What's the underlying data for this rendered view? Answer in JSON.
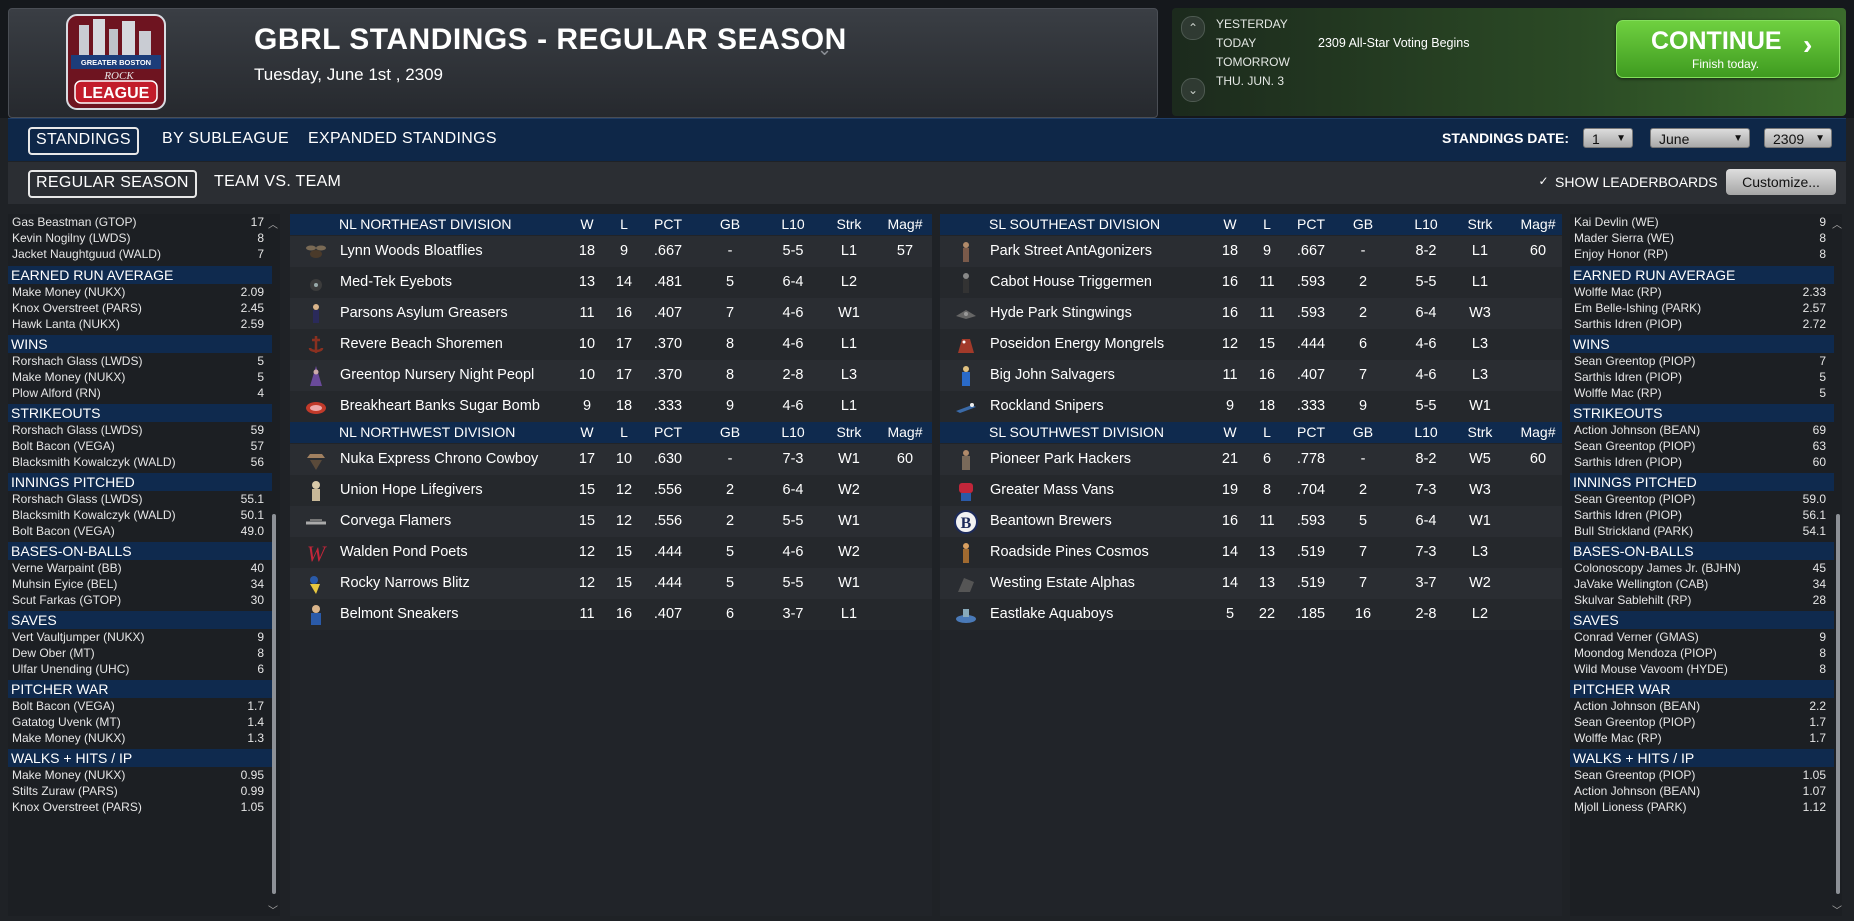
{
  "header": {
    "title": "GBRL STANDINGS - REGULAR SEASON",
    "date": "Tuesday, June 1st , 2309",
    "logo": {
      "top": "GREATER BOSTON",
      "script": "ROCK",
      "bottom": "LEAGUE"
    }
  },
  "schedule": {
    "days": [
      "YESTERDAY",
      "TODAY",
      "TOMORROW",
      "THU. JUN. 3"
    ],
    "today_event": "2309 All-Star Voting Begins",
    "continue_label": "CONTINUE",
    "continue_sub": "Finish today."
  },
  "tabs_primary": [
    "STANDINGS",
    "BY SUBLEAGUE",
    "EXPANDED STANDINGS"
  ],
  "tabs_secondary": [
    "REGULAR SEASON",
    "TEAM VS. TEAM"
  ],
  "controls": {
    "standings_date_label": "STANDINGS DATE:",
    "day": "1",
    "month": "June",
    "year": "2309",
    "show_leaderboards": "SHOW LEADERBOARDS",
    "customize": "Customize..."
  },
  "left_leaders": {
    "top_rows": [
      {
        "n": "Gas Beastman (GTOP)",
        "v": "17"
      },
      {
        "n": "Kevin Nogilny (LWDS)",
        "v": "8"
      },
      {
        "n": "Jacket Naughtguud (WALD)",
        "v": "7"
      }
    ],
    "categories": [
      {
        "title": "EARNED RUN AVERAGE",
        "rows": [
          {
            "n": "Make Money (NUKX)",
            "v": "2.09"
          },
          {
            "n": "Knox Overstreet (PARS)",
            "v": "2.45"
          },
          {
            "n": "Hawk Lanta (NUKX)",
            "v": "2.59"
          }
        ]
      },
      {
        "title": "WINS",
        "rows": [
          {
            "n": "Rorshach Glass (LWDS)",
            "v": "5"
          },
          {
            "n": "Make Money (NUKX)",
            "v": "5"
          },
          {
            "n": "Plow Alford (RN)",
            "v": "4"
          }
        ]
      },
      {
        "title": "STRIKEOUTS",
        "rows": [
          {
            "n": "Rorshach Glass (LWDS)",
            "v": "59"
          },
          {
            "n": "Bolt Bacon (VEGA)",
            "v": "57"
          },
          {
            "n": "Blacksmith Kowalczyk (WALD)",
            "v": "56"
          }
        ]
      },
      {
        "title": "INNINGS PITCHED",
        "rows": [
          {
            "n": "Rorshach Glass (LWDS)",
            "v": "55.1"
          },
          {
            "n": "Blacksmith Kowalczyk (WALD)",
            "v": "50.1"
          },
          {
            "n": "Bolt Bacon (VEGA)",
            "v": "49.0"
          }
        ]
      },
      {
        "title": "BASES-ON-BALLS",
        "rows": [
          {
            "n": "Verne Warpaint (BB)",
            "v": "40"
          },
          {
            "n": "Muhsin Eyice (BEL)",
            "v": "34"
          },
          {
            "n": "Scut Farkas (GTOP)",
            "v": "30"
          }
        ]
      },
      {
        "title": "SAVES",
        "rows": [
          {
            "n": "Vert Vaultjumper (NUKX)",
            "v": "9"
          },
          {
            "n": "Dew Ober (MT)",
            "v": "8"
          },
          {
            "n": "Ulfar Unending (UHC)",
            "v": "6"
          }
        ]
      },
      {
        "title": "PITCHER WAR",
        "rows": [
          {
            "n": "Bolt Bacon (VEGA)",
            "v": "1.7"
          },
          {
            "n": "Gatatog Uvenk (MT)",
            "v": "1.4"
          },
          {
            "n": "Make Money (NUKX)",
            "v": "1.3"
          }
        ]
      },
      {
        "title": "WALKS + HITS / IP",
        "rows": [
          {
            "n": "Make Money (NUKX)",
            "v": "0.95"
          },
          {
            "n": "Stilts Zuraw (PARS)",
            "v": "0.99"
          },
          {
            "n": "Knox Overstreet (PARS)",
            "v": "1.05"
          }
        ]
      }
    ]
  },
  "right_leaders": {
    "top_rows": [
      {
        "n": "Kai Devlin (WE)",
        "v": "9"
      },
      {
        "n": "Mader Sierra (WE)",
        "v": "8"
      },
      {
        "n": "Enjoy Honor (RP)",
        "v": "8"
      }
    ],
    "categories": [
      {
        "title": "EARNED RUN AVERAGE",
        "rows": [
          {
            "n": "Wolffe Mac (RP)",
            "v": "2.33"
          },
          {
            "n": "Em Belle-Ishing (PARK)",
            "v": "2.57"
          },
          {
            "n": "Sarthis Idren (PIOP)",
            "v": "2.72"
          }
        ]
      },
      {
        "title": "WINS",
        "rows": [
          {
            "n": "Sean Greentop (PIOP)",
            "v": "7"
          },
          {
            "n": "Sarthis Idren (PIOP)",
            "v": "5"
          },
          {
            "n": "Wolffe Mac (RP)",
            "v": "5"
          }
        ]
      },
      {
        "title": "STRIKEOUTS",
        "rows": [
          {
            "n": "Action Johnson (BEAN)",
            "v": "69"
          },
          {
            "n": "Sean Greentop (PIOP)",
            "v": "63"
          },
          {
            "n": "Sarthis Idren (PIOP)",
            "v": "60"
          }
        ]
      },
      {
        "title": "INNINGS PITCHED",
        "rows": [
          {
            "n": "Sean Greentop (PIOP)",
            "v": "59.0"
          },
          {
            "n": "Sarthis Idren (PIOP)",
            "v": "56.1"
          },
          {
            "n": "Bull Strickland (PARK)",
            "v": "54.1"
          }
        ]
      },
      {
        "title": "BASES-ON-BALLS",
        "rows": [
          {
            "n": "Colonoscopy James Jr. (BJHN)",
            "v": "45"
          },
          {
            "n": "JaVake Wellington (CAB)",
            "v": "34"
          },
          {
            "n": "Skulvar Sablehilt (RP)",
            "v": "28"
          }
        ]
      },
      {
        "title": "SAVES",
        "rows": [
          {
            "n": "Conrad Verner (GMAS)",
            "v": "9"
          },
          {
            "n": "Moondog Mendoza (PIOP)",
            "v": "8"
          },
          {
            "n": "Wild Mouse Vavoom (HYDE)",
            "v": "8"
          }
        ]
      },
      {
        "title": "PITCHER WAR",
        "rows": [
          {
            "n": "Action Johnson (BEAN)",
            "v": "2.2"
          },
          {
            "n": "Sean Greentop (PIOP)",
            "v": "1.7"
          },
          {
            "n": "Wolffe Mac (RP)",
            "v": "1.7"
          }
        ]
      },
      {
        "title": "WALKS + HITS / IP",
        "rows": [
          {
            "n": "Sean Greentop (PIOP)",
            "v": "1.05"
          },
          {
            "n": "Action Johnson (BEAN)",
            "v": "1.07"
          },
          {
            "n": "Mjoll Lioness (PARK)",
            "v": "1.12"
          }
        ]
      }
    ]
  },
  "columns": [
    "W",
    "L",
    "PCT",
    "GB",
    "L10",
    "Strk",
    "Mag#"
  ],
  "nl_divisions": [
    {
      "name": "NL NORTHEAST DIVISION",
      "teams": [
        {
          "name": "Lynn Woods Bloatflies",
          "w": "18",
          "l": "9",
          "pct": ".667",
          "gb": "-",
          "l10": "5-5",
          "strk": "L1",
          "mag": "57",
          "icon": "fly-icon"
        },
        {
          "name": "Med-Tek Eyebots",
          "w": "13",
          "l": "14",
          "pct": ".481",
          "gb": "5",
          "l10": "6-4",
          "strk": "L2",
          "mag": "",
          "icon": "eyebot-icon"
        },
        {
          "name": "Parsons Asylum Greasers",
          "w": "11",
          "l": "16",
          "pct": ".407",
          "gb": "7",
          "l10": "4-6",
          "strk": "W1",
          "mag": "",
          "icon": "greaser-icon"
        },
        {
          "name": "Revere Beach Shoremen",
          "w": "10",
          "l": "17",
          "pct": ".370",
          "gb": "8",
          "l10": "4-6",
          "strk": "L1",
          "mag": "",
          "icon": "anchor-icon"
        },
        {
          "name": "Greentop Nursery Night Peopl",
          "w": "10",
          "l": "17",
          "pct": ".370",
          "gb": "8",
          "l10": "2-8",
          "strk": "L3",
          "mag": "",
          "icon": "hooded-figure-icon"
        },
        {
          "name": "Breakheart Banks Sugar Bomb",
          "w": "9",
          "l": "18",
          "pct": ".333",
          "gb": "9",
          "l10": "4-6",
          "strk": "L1",
          "mag": "",
          "icon": "sugar-bomb-icon"
        }
      ]
    },
    {
      "name": "NL NORTHWEST DIVISION",
      "teams": [
        {
          "name": "Nuka Express Chrono Cowboy",
          "w": "17",
          "l": "10",
          "pct": ".630",
          "gb": "-",
          "l10": "7-3",
          "strk": "W1",
          "mag": "60",
          "icon": "cowboy-icon"
        },
        {
          "name": "Union Hope Lifegivers",
          "w": "15",
          "l": "12",
          "pct": ".556",
          "gb": "2",
          "l10": "6-4",
          "strk": "W2",
          "mag": "",
          "icon": "lifegiver-icon"
        },
        {
          "name": "Corvega Flamers",
          "w": "15",
          "l": "12",
          "pct": ".556",
          "gb": "2",
          "l10": "5-5",
          "strk": "W1",
          "mag": "",
          "icon": "car-badge-icon"
        },
        {
          "name": "Walden Pond Poets",
          "w": "12",
          "l": "15",
          "pct": ".444",
          "gb": "5",
          "l10": "4-6",
          "strk": "W2",
          "mag": "",
          "icon": "letter-w-icon"
        },
        {
          "name": "Rocky Narrows Blitz",
          "w": "12",
          "l": "15",
          "pct": ".444",
          "gb": "5",
          "l10": "5-5",
          "strk": "W1",
          "mag": "",
          "icon": "blitz-icon"
        },
        {
          "name": "Belmont Sneakers",
          "w": "11",
          "l": "16",
          "pct": ".407",
          "gb": "6",
          "l10": "3-7",
          "strk": "L1",
          "mag": "",
          "icon": "sneaker-icon"
        }
      ]
    }
  ],
  "sl_divisions": [
    {
      "name": "SL SOUTHEAST DIVISION",
      "teams": [
        {
          "name": "Park Street AntAgonizers",
          "w": "18",
          "l": "9",
          "pct": ".667",
          "gb": "-",
          "l10": "8-2",
          "strk": "L1",
          "mag": "60",
          "icon": "ant-icon"
        },
        {
          "name": "Cabot House Triggermen",
          "w": "16",
          "l": "11",
          "pct": ".593",
          "gb": "2",
          "l10": "5-5",
          "strk": "L1",
          "mag": "",
          "icon": "gunman-icon"
        },
        {
          "name": "Hyde Park Stingwings",
          "w": "16",
          "l": "11",
          "pct": ".593",
          "gb": "2",
          "l10": "6-4",
          "strk": "W3",
          "mag": "",
          "icon": "stingwing-icon"
        },
        {
          "name": "Poseidon Energy Mongrels",
          "w": "12",
          "l": "15",
          "pct": ".444",
          "gb": "6",
          "l10": "4-6",
          "strk": "L3",
          "mag": "",
          "icon": "dog-icon"
        },
        {
          "name": "Big John Salvagers",
          "w": "11",
          "l": "16",
          "pct": ".407",
          "gb": "7",
          "l10": "4-6",
          "strk": "L3",
          "mag": "",
          "icon": "salvager-icon"
        },
        {
          "name": "Rockland Snipers",
          "w": "9",
          "l": "18",
          "pct": ".333",
          "gb": "9",
          "l10": "5-5",
          "strk": "W1",
          "mag": "",
          "icon": "sniper-icon"
        }
      ]
    },
    {
      "name": "SL SOUTHWEST DIVISION",
      "teams": [
        {
          "name": "Pioneer Park Hackers",
          "w": "21",
          "l": "6",
          "pct": ".778",
          "gb": "-",
          "l10": "8-2",
          "strk": "W5",
          "mag": "60",
          "icon": "hacker-icon"
        },
        {
          "name": "Greater Mass Vans",
          "w": "19",
          "l": "8",
          "pct": ".704",
          "gb": "2",
          "l10": "7-3",
          "strk": "W3",
          "mag": "",
          "icon": "van-icon"
        },
        {
          "name": "Beantown Brewers",
          "w": "16",
          "l": "11",
          "pct": ".593",
          "gb": "5",
          "l10": "6-4",
          "strk": "W1",
          "mag": "",
          "icon": "letter-b-icon"
        },
        {
          "name": "Roadside Pines Cosmos",
          "w": "14",
          "l": "13",
          "pct": ".519",
          "gb": "7",
          "l10": "7-3",
          "strk": "L3",
          "mag": "",
          "icon": "cosmos-icon"
        },
        {
          "name": "Westing Estate Alphas",
          "w": "14",
          "l": "13",
          "pct": ".519",
          "gb": "7",
          "l10": "3-7",
          "strk": "W2",
          "mag": "",
          "icon": "alpha-icon"
        },
        {
          "name": "Eastlake Aquaboys",
          "w": "5",
          "l": "22",
          "pct": ".185",
          "gb": "16",
          "l10": "2-8",
          "strk": "L2",
          "mag": "",
          "icon": "aquaboy-icon"
        }
      ]
    }
  ]
}
